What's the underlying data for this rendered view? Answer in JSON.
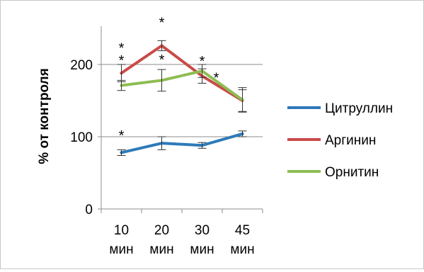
{
  "chart_data": {
    "type": "line",
    "title": "",
    "xlabel": "",
    "ylabel": "% от контроля",
    "ylim": [
      0,
      250
    ],
    "yticks": [
      0,
      100,
      200
    ],
    "categories": [
      [
        "10",
        "мин"
      ],
      [
        "20",
        "мин"
      ],
      [
        "30",
        "мин"
      ],
      [
        "45",
        "мин"
      ]
    ],
    "grid": true,
    "legend_position": "right",
    "series": [
      {
        "name": "Цитруллин",
        "color": "#2e7ab8",
        "values": [
          78,
          91,
          88,
          104
        ],
        "errors": [
          4,
          9,
          4,
          4
        ],
        "stars": [
          [
            1,
            0,
            0
          ]
        ]
      },
      {
        "name": "Аргинин",
        "color": "#c94b47",
        "values": [
          188,
          226,
          184,
          150
        ],
        "errors": [
          12,
          7,
          10,
          15
        ],
        "stars": []
      },
      {
        "name": "Орнитин",
        "color": "#8dbd52",
        "values": [
          171,
          178,
          191,
          151
        ],
        "errors": [
          7,
          15,
          9,
          17
        ],
        "stars": []
      }
    ],
    "annotations": [
      {
        "text": "*",
        "category_index": 0,
        "y": 107
      },
      {
        "text": "*",
        "category_index": 0,
        "y": 211
      },
      {
        "text": "*",
        "category_index": 0,
        "y": 228
      },
      {
        "text": "*",
        "category_index": 1,
        "y": 212
      },
      {
        "text": "*",
        "category_index": 1,
        "y": 263
      },
      {
        "text": "*",
        "category_index": 2,
        "y": 210
      },
      {
        "text": "*",
        "category_index": 2,
        "y": 187,
        "offset": "right"
      }
    ]
  }
}
